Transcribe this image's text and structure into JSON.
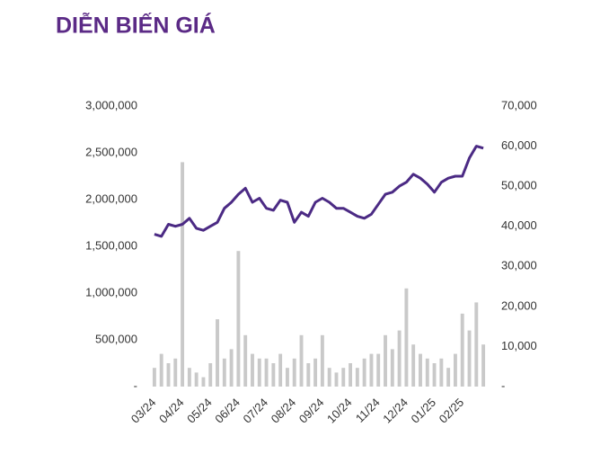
{
  "chart_data": {
    "type": "combo",
    "title": "DIỄN BIẾN GIÁ",
    "categories": [
      "03/24",
      null,
      null,
      null,
      "04/24",
      null,
      null,
      null,
      "05/24",
      null,
      null,
      null,
      "06/24",
      null,
      null,
      null,
      "07/24",
      null,
      null,
      null,
      "08/24",
      null,
      null,
      null,
      "09/24",
      null,
      null,
      null,
      "10/24",
      null,
      null,
      null,
      "11/24",
      null,
      null,
      null,
      "12/24",
      null,
      null,
      null,
      "01/25",
      null,
      null,
      null,
      "02/25",
      null,
      null,
      null
    ],
    "series": [
      {
        "type": "bar",
        "axis": "y",
        "color": "#c9c9c9",
        "values": [
          200000,
          350000,
          250000,
          300000,
          2400000,
          200000,
          150000,
          100000,
          250000,
          720000,
          300000,
          400000,
          1450000,
          550000,
          350000,
          300000,
          300000,
          250000,
          350000,
          200000,
          300000,
          550000,
          250000,
          300000,
          550000,
          200000,
          150000,
          200000,
          250000,
          200000,
          300000,
          350000,
          350000,
          550000,
          400000,
          600000,
          1050000,
          450000,
          350000,
          300000,
          250000,
          300000,
          200000,
          350000,
          780000,
          600000,
          900000,
          450000
        ]
      },
      {
        "type": "line",
        "axis": "y2",
        "color": "#4b2a84",
        "values": [
          38000,
          37500,
          40500,
          40000,
          40500,
          42000,
          39500,
          39000,
          40000,
          41000,
          44500,
          46000,
          48000,
          49500,
          46000,
          47000,
          44500,
          44000,
          46500,
          46000,
          41000,
          43500,
          42500,
          46000,
          47000,
          46000,
          44500,
          44500,
          43500,
          42500,
          42000,
          43000,
          45500,
          48000,
          48500,
          50000,
          51000,
          53000,
          52000,
          50500,
          48500,
          51000,
          52000,
          52500,
          52500,
          57000,
          60000,
          59500
        ]
      }
    ],
    "ylim": [
      0,
      3000000
    ],
    "yticks": [
      {
        "value": 0,
        "label": "-"
      },
      {
        "value": 500000,
        "label": "500,000"
      },
      {
        "value": 1000000,
        "label": "1,000,000"
      },
      {
        "value": 1500000,
        "label": "1,500,000"
      },
      {
        "value": 2000000,
        "label": "2,000,000"
      },
      {
        "value": 2500000,
        "label": "2,500,000"
      },
      {
        "value": 3000000,
        "label": "3,000,000"
      }
    ],
    "y2lim": [
      0,
      70000
    ],
    "y2ticks": [
      {
        "value": 0,
        "label": "-"
      },
      {
        "value": 10000,
        "label": "10,000"
      },
      {
        "value": 20000,
        "label": "20,000"
      },
      {
        "value": 30000,
        "label": "30,000"
      },
      {
        "value": 40000,
        "label": "40,000"
      },
      {
        "value": 50000,
        "label": "50,000"
      },
      {
        "value": 60000,
        "label": "60,000"
      },
      {
        "value": 70000,
        "label": "70,000"
      }
    ]
  }
}
